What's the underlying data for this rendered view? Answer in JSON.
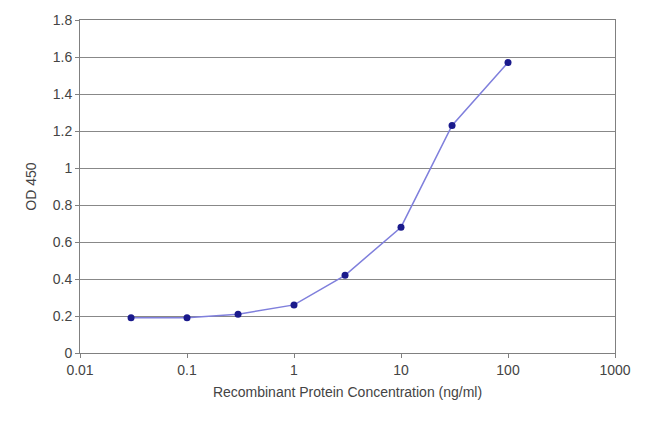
{
  "chart_data": {
    "type": "line",
    "x_label": "Recombinant Protein Concentration (ng/ml)",
    "y_label": "OD 450",
    "x": [
      0.03,
      0.1,
      0.3,
      1,
      3,
      10,
      30,
      100
    ],
    "values": [
      0.19,
      0.19,
      0.21,
      0.26,
      0.42,
      0.68,
      1.23,
      1.57
    ],
    "color": "#1a1a8c",
    "marker": "circle",
    "log": "x",
    "xlim": [
      0.01,
      1000
    ],
    "xticks": [
      0.01,
      0.1,
      1,
      10,
      100,
      1000
    ],
    "ylim": [
      0,
      1.8
    ],
    "yticks": [
      0,
      0.2,
      0.4,
      0.6,
      0.8,
      1,
      1.2,
      1.4,
      1.6,
      1.8
    ],
    "grid": true
  }
}
